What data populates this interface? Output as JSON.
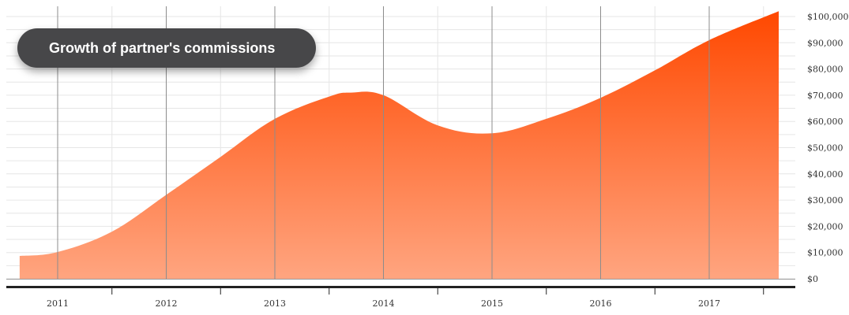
{
  "title": "Growth of partner's commissions",
  "colors": {
    "area_top": "#ff4800",
    "area_bottom": "#ffa580",
    "grid": "#e6e6e6",
    "vline": "#8c8c8c",
    "axis": "#222222",
    "title_bg": "#474749"
  },
  "chart_data": {
    "type": "area",
    "title": "Growth of partner's commissions",
    "xlabel": "",
    "ylabel": "",
    "x_ticks": [
      "2011",
      "2012",
      "2013",
      "2014",
      "2015",
      "2016",
      "2017"
    ],
    "y_ticks": [
      "$0",
      "$10,000",
      "$20,000",
      "$30,000",
      "$40,000",
      "$50,000",
      "$60,000",
      "$70,000",
      "$80,000",
      "$90,000",
      "$100,000"
    ],
    "ylim": [
      0,
      100000
    ],
    "xlim": [
      2010.63,
      2017.67
    ],
    "grid": true,
    "legend": "none",
    "series": [
      {
        "x": [
          2010.65,
          2011,
          2011.5,
          2012,
          2012.5,
          2013,
          2013.5,
          2013.7,
          2014,
          2014.5,
          2015,
          2015.5,
          2016,
          2016.5,
          2017,
          2017.64
        ],
        "values": [
          8700,
          10200,
          18000,
          32000,
          46500,
          61000,
          69500,
          71000,
          70000,
          58500,
          55500,
          61000,
          69000,
          79500,
          91000,
          102000
        ]
      }
    ]
  }
}
